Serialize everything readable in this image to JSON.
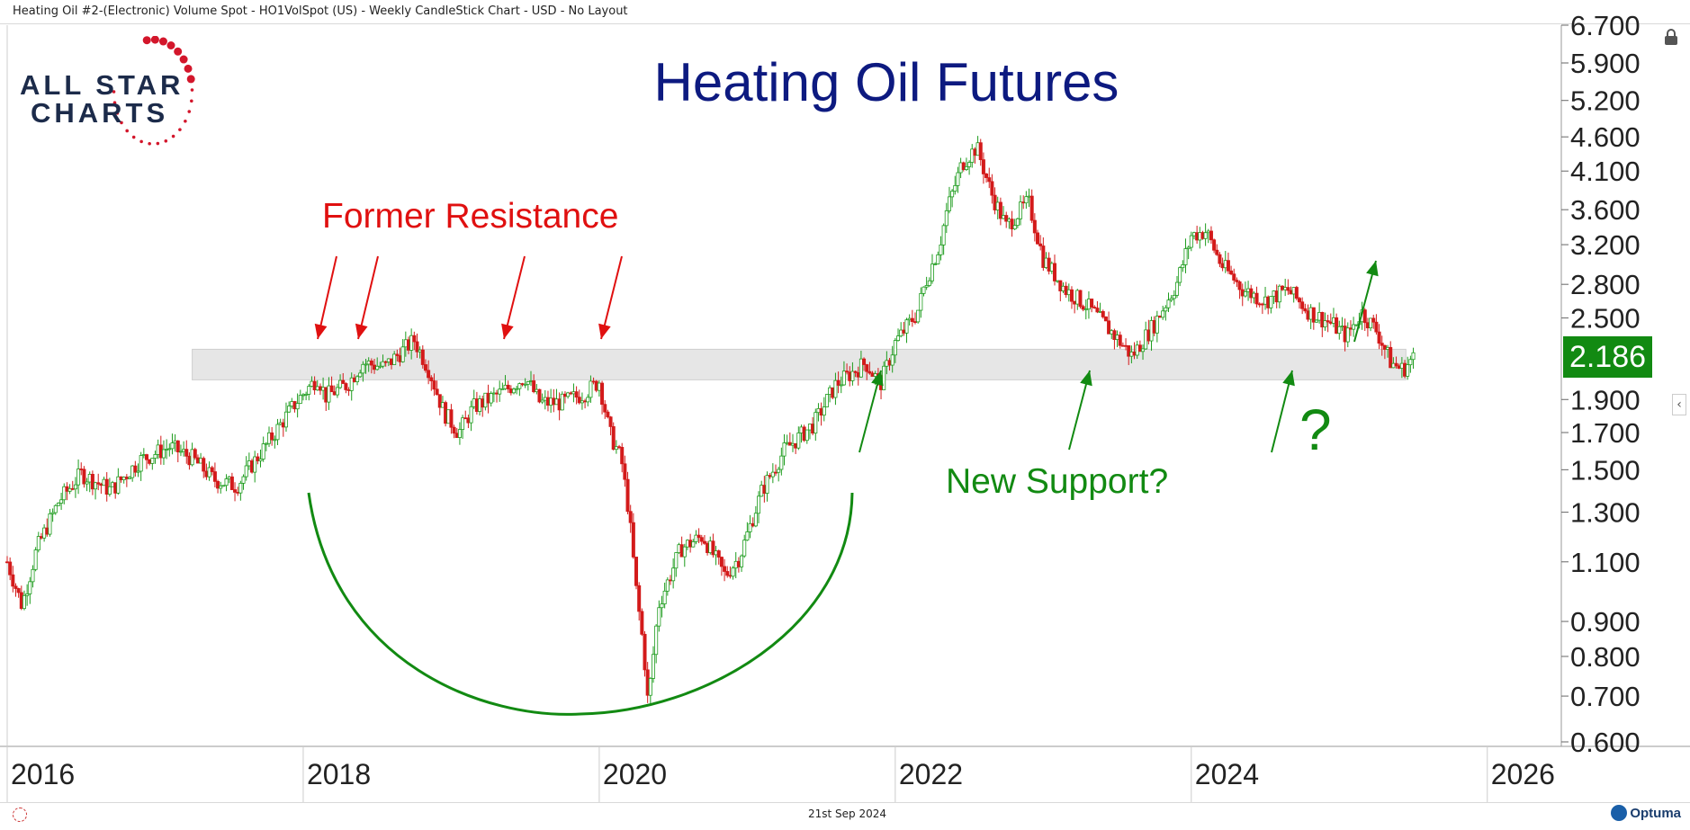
{
  "header": {
    "title": "Heating Oil #2-(Electronic) Volume Spot - HO1VolSpot (US) - Weekly CandleStick Chart - USD - No Layout"
  },
  "footer": {
    "date": "21st Sep 2024",
    "brand": "Optuma"
  },
  "logo": {
    "line1": "ALL STAR",
    "line2": "CHARTS"
  },
  "colors": {
    "up": "#1e9c1e",
    "down": "#d31a1a",
    "title": "#0d1a80",
    "annotation_red": "#e01010",
    "annotation_green": "#128a12",
    "band": "#e6e6e6"
  },
  "icons": [
    "lock-icon",
    "chevron-left-icon",
    "optuma-logo-icon"
  ],
  "chart_data": {
    "type": "candlestick",
    "title": "Heating Oil Futures",
    "scale": "log",
    "ylim": [
      0.6,
      6.7
    ],
    "xlim": [
      2016.0,
      2026.5
    ],
    "y_ticks": [
      "6.700",
      "5.900",
      "5.200",
      "4.600",
      "4.100",
      "3.600",
      "3.200",
      "2.800",
      "2.500",
      "1.900",
      "1.700",
      "1.500",
      "1.300",
      "1.100",
      "0.900",
      "0.800",
      "0.700",
      "0.600"
    ],
    "x_ticks": [
      "2016",
      "2018",
      "2020",
      "2022",
      "2024",
      "2026"
    ],
    "current_value": "2.186",
    "support_band": {
      "low": 2.03,
      "high": 2.25,
      "x_start": 2017.25,
      "x_end": 2025.45
    },
    "annotations": {
      "resistance": "Former Resistance",
      "support": "New Support?",
      "question": "?"
    },
    "price_path": [
      [
        2016.0,
        1.1
      ],
      [
        2016.1,
        0.95
      ],
      [
        2016.2,
        1.15
      ],
      [
        2016.35,
        1.35
      ],
      [
        2016.5,
        1.48
      ],
      [
        2016.7,
        1.4
      ],
      [
        2016.9,
        1.55
      ],
      [
        2017.1,
        1.62
      ],
      [
        2017.25,
        1.56
      ],
      [
        2017.4,
        1.45
      ],
      [
        2017.55,
        1.42
      ],
      [
        2017.75,
        1.63
      ],
      [
        2017.95,
        1.88
      ],
      [
        2018.1,
        2.05
      ],
      [
        2018.15,
        1.92
      ],
      [
        2018.3,
        2.0
      ],
      [
        2018.4,
        2.15
      ],
      [
        2018.55,
        2.12
      ],
      [
        2018.75,
        2.32
      ],
      [
        2018.85,
        2.1
      ],
      [
        2018.95,
        1.82
      ],
      [
        2019.05,
        1.7
      ],
      [
        2019.15,
        1.85
      ],
      [
        2019.35,
        1.95
      ],
      [
        2019.5,
        2.05
      ],
      [
        2019.6,
        1.88
      ],
      [
        2019.75,
        1.88
      ],
      [
        2019.9,
        1.94
      ],
      [
        2020.0,
        2.02
      ],
      [
        2020.07,
        1.7
      ],
      [
        2020.15,
        1.55
      ],
      [
        2020.2,
        1.3
      ],
      [
        2020.25,
        1.0
      ],
      [
        2020.3,
        0.82
      ],
      [
        2020.33,
        0.68
      ],
      [
        2020.4,
        0.95
      ],
      [
        2020.55,
        1.15
      ],
      [
        2020.7,
        1.2
      ],
      [
        2020.85,
        1.05
      ],
      [
        2020.95,
        1.12
      ],
      [
        2021.1,
        1.4
      ],
      [
        2021.25,
        1.6
      ],
      [
        2021.45,
        1.75
      ],
      [
        2021.6,
        2.0
      ],
      [
        2021.8,
        2.15
      ],
      [
        2021.9,
        2.0
      ],
      [
        2022.0,
        2.3
      ],
      [
        2022.15,
        2.55
      ],
      [
        2022.2,
        2.8
      ],
      [
        2022.3,
        3.2
      ],
      [
        2022.35,
        3.6
      ],
      [
        2022.45,
        4.2
      ],
      [
        2022.55,
        4.45
      ],
      [
        2022.65,
        3.8
      ],
      [
        2022.75,
        3.4
      ],
      [
        2022.9,
        3.7
      ],
      [
        2023.0,
        3.05
      ],
      [
        2023.15,
        2.75
      ],
      [
        2023.3,
        2.6
      ],
      [
        2023.45,
        2.4
      ],
      [
        2023.6,
        2.2
      ],
      [
        2023.75,
        2.45
      ],
      [
        2023.9,
        2.8
      ],
      [
        2024.0,
        3.3
      ],
      [
        2024.1,
        3.35
      ],
      [
        2024.2,
        3.0
      ],
      [
        2024.35,
        2.75
      ],
      [
        2024.5,
        2.65
      ],
      [
        2024.65,
        2.75
      ],
      [
        2024.8,
        2.55
      ],
      [
        2024.95,
        2.45
      ],
      [
        2025.05,
        2.35
      ],
      [
        2025.15,
        2.55
      ],
      [
        2025.25,
        2.4
      ],
      [
        2025.35,
        2.15
      ],
      [
        2025.43,
        2.1
      ],
      [
        2025.5,
        2.186
      ]
    ]
  }
}
